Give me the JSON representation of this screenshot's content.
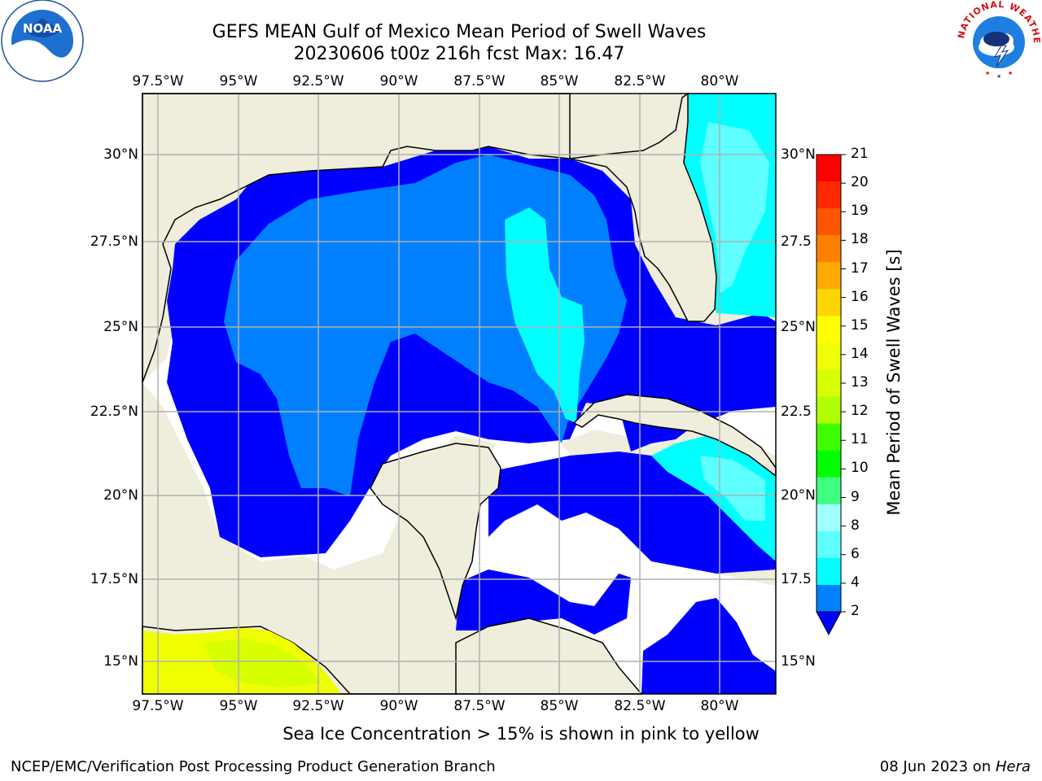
{
  "header": {
    "title_line1": "GEFS MEAN Gulf of Mexico Mean Period of Swell Waves",
    "title_line2": "20230606 t00z 216h fcst   Max: 16.47"
  },
  "map": {
    "lon_labels": [
      "97.5°W",
      "95°W",
      "92.5°W",
      "90°W",
      "87.5°W",
      "85°W",
      "82.5°W",
      "80°W"
    ],
    "lat_labels": [
      "30°N",
      "27.5°N",
      "25°N",
      "22.5°N",
      "20°N",
      "17.5°N",
      "15°N"
    ],
    "lat_labels_right": [
      "30°N",
      "27.5",
      "25°N",
      "22.5",
      "20°N",
      "17.5",
      "15°N"
    ],
    "colors": {
      "land": "#efeddc",
      "no_data": "#ffffff",
      "swell_2_4": "#0000ff",
      "swell_4_6": "#0080ff",
      "swell_6_8": "#00ffff",
      "swell_8_9": "#60ffff",
      "ice": "#f0ff00",
      "grid": "#b0b0b0",
      "coast": "#000000"
    }
  },
  "colorbar": {
    "label": "Mean Period of Swell Waves [s]",
    "ticks": [
      "21",
      "20",
      "19",
      "18",
      "17",
      "16",
      "15",
      "14",
      "13",
      "12",
      "11",
      "10",
      "9",
      "8",
      "6",
      "4",
      "2"
    ],
    "colors": [
      "#ff0000",
      "#ff2a00",
      "#ff5500",
      "#ff8000",
      "#ffaa00",
      "#ffd500",
      "#ffff00",
      "#f0ff00",
      "#d8ff00",
      "#b0ff00",
      "#40ff00",
      "#00ff00",
      "#40ff80",
      "#a0ffff",
      "#60ffff",
      "#00ffff",
      "#0080ff",
      "#0000ff"
    ]
  },
  "notes": {
    "ice_note": "Sea Ice Concentration > 15% is shown in pink to yellow"
  },
  "footer": {
    "left": "NCEP/EMC/Verification Post Processing Product Generation Branch",
    "right_date": "08 Jun 2023 on ",
    "right_host": "Hera"
  },
  "logos": {
    "noaa_text": "NOAA",
    "nws_text": "NATIONAL WEATHER SERVICE",
    "noaa_icon": "noaa-logo-icon",
    "nws_icon": "nws-logo-icon"
  }
}
